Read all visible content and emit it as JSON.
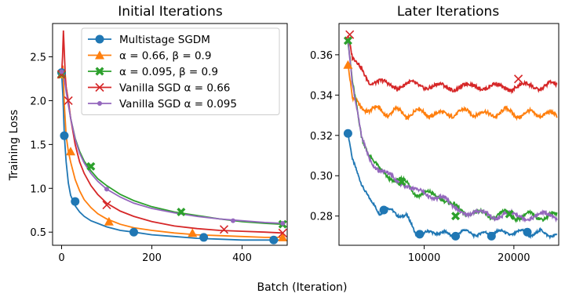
{
  "figure": {
    "shared_xlabel": "Batch (Iteration)"
  },
  "chart_data": [
    {
      "type": "line",
      "title": "Initial Iterations",
      "xlabel": "",
      "ylabel": "Training Loss",
      "xlim": [
        -20,
        500
      ],
      "ylim": [
        0.35,
        2.88
      ],
      "xticks": [
        0,
        200,
        400
      ],
      "yticks": [
        0.5,
        1.0,
        1.5,
        2.0,
        2.5
      ],
      "grid": false,
      "legend": {
        "placement": "top-right"
      },
      "series": [
        {
          "name": "Multistage SGDM",
          "color": "#1f77b4",
          "marker": "circle",
          "x": [
            0,
            3,
            6,
            10,
            15,
            20,
            30,
            40,
            50,
            65,
            80,
            100,
            130,
            160,
            200,
            250,
            300,
            350,
            400,
            450,
            490
          ],
          "y": [
            2.32,
            2.05,
            1.6,
            1.3,
            1.06,
            0.92,
            0.8,
            0.73,
            0.68,
            0.63,
            0.6,
            0.56,
            0.52,
            0.5,
            0.47,
            0.45,
            0.43,
            0.42,
            0.41,
            0.41,
            0.41
          ],
          "markers_x": [
            0,
            6,
            30,
            160,
            315,
            470
          ],
          "markers_y": [
            2.32,
            1.6,
            0.85,
            0.5,
            0.44,
            0.41
          ]
        },
        {
          "name": "α = 0.66, β = 0.9",
          "color": "#ff7f0e",
          "marker": "triangle",
          "x": [
            0,
            3,
            6,
            10,
            15,
            20,
            30,
            40,
            50,
            65,
            80,
            100,
            130,
            160,
            200,
            250,
            300,
            350,
            400,
            450,
            490
          ],
          "y": [
            2.3,
            2.4,
            1.95,
            1.6,
            1.42,
            1.3,
            1.1,
            0.97,
            0.87,
            0.78,
            0.71,
            0.65,
            0.59,
            0.55,
            0.52,
            0.49,
            0.47,
            0.46,
            0.45,
            0.44,
            0.44
          ],
          "markers_x": [
            0,
            20,
            105,
            290,
            490
          ],
          "markers_y": [
            2.3,
            1.42,
            0.62,
            0.49,
            0.44
          ]
        },
        {
          "name": "α = 0.095, β = 0.9",
          "color": "#2ca02c",
          "marker": "x-filled",
          "x": [
            0,
            3,
            6,
            10,
            15,
            20,
            30,
            40,
            50,
            65,
            80,
            100,
            130,
            160,
            200,
            250,
            300,
            350,
            400,
            450,
            490
          ],
          "y": [
            2.3,
            2.31,
            2.28,
            2.15,
            1.98,
            1.8,
            1.57,
            1.42,
            1.31,
            1.2,
            1.11,
            1.03,
            0.93,
            0.86,
            0.79,
            0.73,
            0.69,
            0.65,
            0.62,
            0.6,
            0.59
          ],
          "markers_x": [
            0,
            65,
            265,
            490
          ],
          "markers_y": [
            2.3,
            1.25,
            0.73,
            0.59
          ]
        },
        {
          "name": "Vanilla SGD α = 0.66",
          "color": "#d62728",
          "marker": "x",
          "x": [
            0,
            2,
            4,
            6,
            8,
            10,
            15,
            20,
            30,
            40,
            50,
            65,
            80,
            100,
            130,
            160,
            200,
            250,
            300,
            350,
            400,
            450,
            490
          ],
          "y": [
            2.3,
            2.5,
            2.8,
            2.55,
            2.3,
            2.15,
            2.0,
            1.8,
            1.5,
            1.3,
            1.17,
            1.03,
            0.93,
            0.83,
            0.74,
            0.68,
            0.62,
            0.57,
            0.54,
            0.52,
            0.51,
            0.5,
            0.49
          ],
          "markers_x": [
            0,
            15,
            100,
            360,
            490
          ],
          "markers_y": [
            2.3,
            2.0,
            0.81,
            0.53,
            0.49
          ]
        },
        {
          "name": "Vanilla SGD α = 0.095",
          "color": "#9467bd",
          "marker": "dot",
          "x": [
            0,
            3,
            6,
            10,
            15,
            20,
            30,
            40,
            50,
            65,
            80,
            100,
            130,
            160,
            200,
            250,
            300,
            350,
            400,
            450,
            490
          ],
          "y": [
            2.33,
            2.3,
            2.25,
            2.1,
            1.95,
            1.8,
            1.56,
            1.4,
            1.29,
            1.17,
            1.08,
            0.99,
            0.9,
            0.83,
            0.77,
            0.72,
            0.68,
            0.65,
            0.63,
            0.61,
            0.6
          ],
          "markers_x": [
            0,
            100,
            380,
            490
          ],
          "markers_y": [
            2.33,
            0.99,
            0.63,
            0.6
          ]
        }
      ]
    },
    {
      "type": "line",
      "title": "Later Iterations",
      "xlabel": "",
      "ylabel": "",
      "xlim": [
        500,
        25000
      ],
      "ylim": [
        0.2655,
        0.3755
      ],
      "xticks": [
        10000,
        20000
      ],
      "yticks": [
        0.28,
        0.3,
        0.32,
        0.34,
        0.36
      ],
      "grid": false,
      "series": [
        {
          "name": "Multistage SGDM",
          "color": "#1f77b4",
          "marker": "circle",
          "x": [
            1500,
            2000,
            3000,
            4000,
            5000,
            6000,
            7000,
            8000,
            9000,
            10000,
            11000,
            12000,
            13000,
            14000,
            15000,
            16000,
            17000,
            18000,
            19000,
            20000,
            21000,
            22000,
            23000,
            24000,
            24800
          ],
          "y": [
            0.321,
            0.307,
            0.297,
            0.287,
            0.282,
            0.283,
            0.281,
            0.28,
            0.272,
            0.271,
            0.272,
            0.272,
            0.27,
            0.272,
            0.272,
            0.271,
            0.271,
            0.273,
            0.271,
            0.272,
            0.272,
            0.271,
            0.272,
            0.271,
            0.27
          ],
          "markers_x": [
            1500,
            5500,
            9500,
            13500,
            17500,
            21500
          ],
          "markers_y": [
            0.321,
            0.283,
            0.271,
            0.27,
            0.27,
            0.272
          ]
        },
        {
          "name": "α = 0.66, β = 0.9",
          "color": "#ff7f0e",
          "marker": "triangle",
          "x": [
            1500,
            2000,
            3000,
            4000,
            5000,
            6000,
            7000,
            8000,
            9000,
            10000,
            11000,
            12000,
            13000,
            14000,
            15000,
            16000,
            17000,
            18000,
            19000,
            20000,
            21000,
            22000,
            23000,
            24000,
            24800
          ],
          "y": [
            0.355,
            0.337,
            0.335,
            0.332,
            0.333,
            0.331,
            0.332,
            0.33,
            0.332,
            0.331,
            0.331,
            0.33,
            0.331,
            0.331,
            0.332,
            0.331,
            0.33,
            0.331,
            0.332,
            0.331,
            0.33,
            0.331,
            0.331,
            0.33,
            0.33
          ],
          "markers_x": [
            1500
          ],
          "markers_y": [
            0.355
          ]
        },
        {
          "name": "α = 0.095, β = 0.9",
          "color": "#2ca02c",
          "marker": "x-filled",
          "x": [
            1500,
            2000,
            3000,
            4000,
            5000,
            6000,
            7000,
            8000,
            9000,
            10000,
            11000,
            12000,
            13000,
            14000,
            15000,
            16000,
            17000,
            18000,
            19000,
            20000,
            21000,
            22000,
            23000,
            24000,
            24800
          ],
          "y": [
            0.367,
            0.345,
            0.32,
            0.31,
            0.302,
            0.3,
            0.298,
            0.296,
            0.292,
            0.291,
            0.29,
            0.29,
            0.285,
            0.283,
            0.282,
            0.281,
            0.281,
            0.28,
            0.281,
            0.28,
            0.28,
            0.28,
            0.28,
            0.28,
            0.28
          ],
          "markers_x": [
            1500,
            7500,
            13500,
            19500
          ],
          "markers_y": [
            0.367,
            0.297,
            0.28,
            0.281
          ]
        },
        {
          "name": "Vanilla SGD α = 0.66",
          "color": "#d62728",
          "marker": "x",
          "x": [
            1500,
            2000,
            3000,
            4000,
            5000,
            6000,
            7000,
            8000,
            9000,
            10000,
            11000,
            12000,
            13000,
            14000,
            15000,
            16000,
            17000,
            18000,
            19000,
            20000,
            21000,
            22000,
            23000,
            24000,
            24800
          ],
          "y": [
            0.37,
            0.357,
            0.353,
            0.347,
            0.346,
            0.345,
            0.345,
            0.345,
            0.345,
            0.345,
            0.344,
            0.344,
            0.344,
            0.344,
            0.344,
            0.345,
            0.344,
            0.344,
            0.344,
            0.344,
            0.344,
            0.345,
            0.344,
            0.345,
            0.344
          ],
          "markers_x": [
            1700,
            20500
          ],
          "markers_y": [
            0.37,
            0.348
          ]
        },
        {
          "name": "Vanilla SGD α = 0.095",
          "color": "#9467bd",
          "marker": "dot",
          "x": [
            1500,
            2000,
            3000,
            4000,
            5000,
            6000,
            7000,
            8000,
            9000,
            10000,
            11000,
            12000,
            13000,
            14000,
            15000,
            16000,
            17000,
            18000,
            19000,
            20000,
            21000,
            22000,
            23000,
            24000,
            24800
          ],
          "y": [
            0.368,
            0.344,
            0.319,
            0.309,
            0.302,
            0.3,
            0.298,
            0.296,
            0.292,
            0.291,
            0.29,
            0.29,
            0.284,
            0.283,
            0.282,
            0.281,
            0.281,
            0.28,
            0.281,
            0.28,
            0.28,
            0.28,
            0.28,
            0.28,
            0.28
          ],
          "markers_x": [],
          "markers_y": []
        }
      ]
    }
  ]
}
